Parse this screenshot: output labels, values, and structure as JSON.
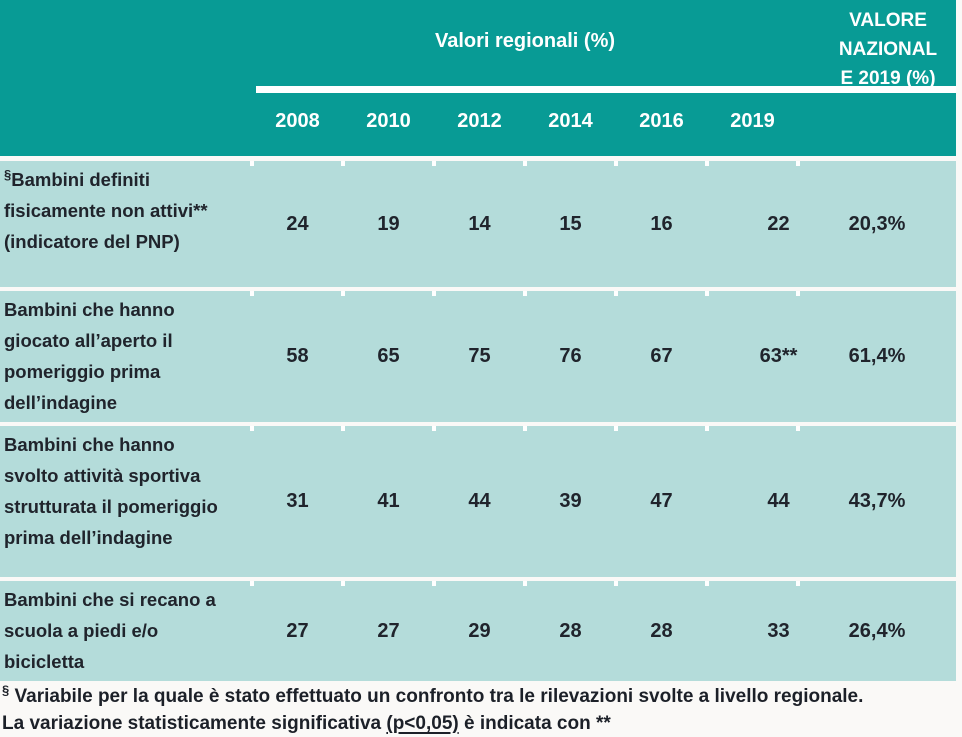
{
  "colors": {
    "header_teal": "#089b95",
    "row_teal": "#b4dcda",
    "header_text": "#ffffff",
    "body_text": "#20242c"
  },
  "table": {
    "header": {
      "regional_title": "Valori regionali (%)",
      "national_title_lines": [
        "VALORE",
        "NAZIONAL",
        "E 2019 (%)"
      ],
      "years": [
        "2008",
        "2010",
        "2012",
        "2014",
        "2016",
        "2019"
      ]
    },
    "rows": [
      {
        "marker": "§",
        "label": "Bambini definiti fisicamente non attivi** (indicatore del PNP)",
        "values": [
          "24",
          "19",
          "14",
          "15",
          "16",
          "22"
        ],
        "national": "20,3%"
      },
      {
        "marker": "",
        "label": "Bambini che hanno giocato all’aperto il pomeriggio prima dell’indagine",
        "values": [
          "58",
          "65",
          "75",
          "76",
          "67",
          "63**"
        ],
        "national": "61,4%"
      },
      {
        "marker": "",
        "label": "Bambini che hanno svolto attività sportiva strutturata il pomeriggio prima dell’indagine",
        "values": [
          "31",
          "41",
          "44",
          "39",
          "47",
          "44"
        ],
        "national": "43,7%"
      },
      {
        "marker": "",
        "label": "Bambini che si recano a scuola a piedi e/o bicicletta",
        "values": [
          "27",
          "27",
          "29",
          "28",
          "28",
          "33"
        ],
        "national": "26,4%"
      }
    ],
    "footnotes": {
      "marker": "§",
      "line1": " Variabile per la quale è stato effettuato un confronto tra le rilevazioni svolte a livello regionale.",
      "line2_before": "La variazione statisticamente significativa ",
      "line2_underlined": "(p<0,05)",
      "line2_after": " è indicata con **"
    }
  },
  "chart_data": {
    "type": "table",
    "title": "Valori regionali (%)",
    "columns": [
      "2008",
      "2010",
      "2012",
      "2014",
      "2016",
      "2019",
      "VALORE NAZIONALE 2019 (%)"
    ],
    "row_labels": [
      "Bambini definiti fisicamente non attivi** (indicatore del PNP)",
      "Bambini che hanno giocato all’aperto il pomeriggio prima dell’indagine",
      "Bambini che hanno svolto attività sportiva strutturata il pomeriggio prima dell’indagine",
      "Bambini che si recano a scuola a piedi e/o bicicletta"
    ],
    "values": [
      [
        24,
        19,
        14,
        15,
        16,
        22,
        "20,3%"
      ],
      [
        58,
        65,
        75,
        76,
        67,
        "63**",
        "61,4%"
      ],
      [
        31,
        41,
        44,
        39,
        47,
        44,
        "43,7%"
      ],
      [
        27,
        27,
        29,
        28,
        28,
        33,
        "26,4%"
      ]
    ]
  }
}
